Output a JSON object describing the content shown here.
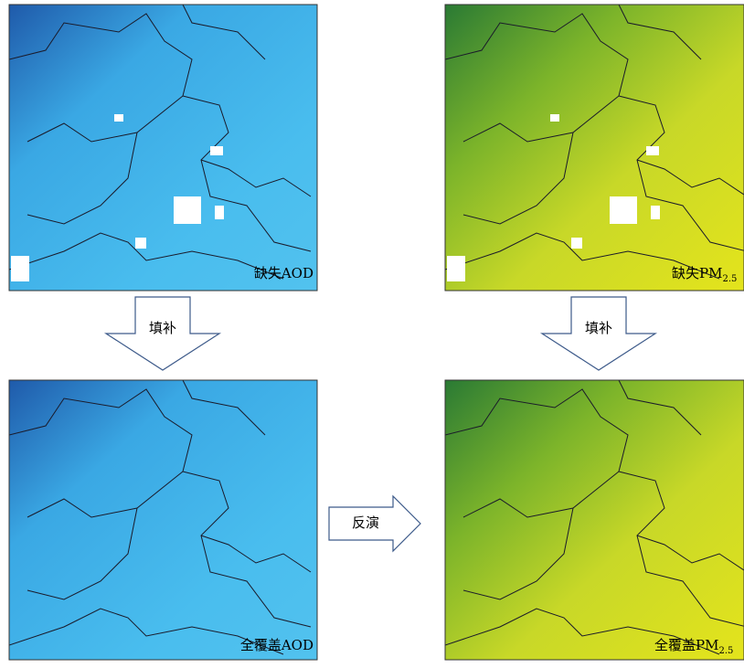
{
  "panels": [
    {
      "label": "缺失AOD"
    },
    {
      "label": "缺失PM",
      "subscript": "2.5"
    },
    {
      "label": "全覆盖AOD"
    },
    {
      "label": "全覆盖PM",
      "subscript": "2.5"
    }
  ],
  "arrows": [
    {
      "label": "填补"
    },
    {
      "label": "填补"
    },
    {
      "label": "反演"
    }
  ]
}
